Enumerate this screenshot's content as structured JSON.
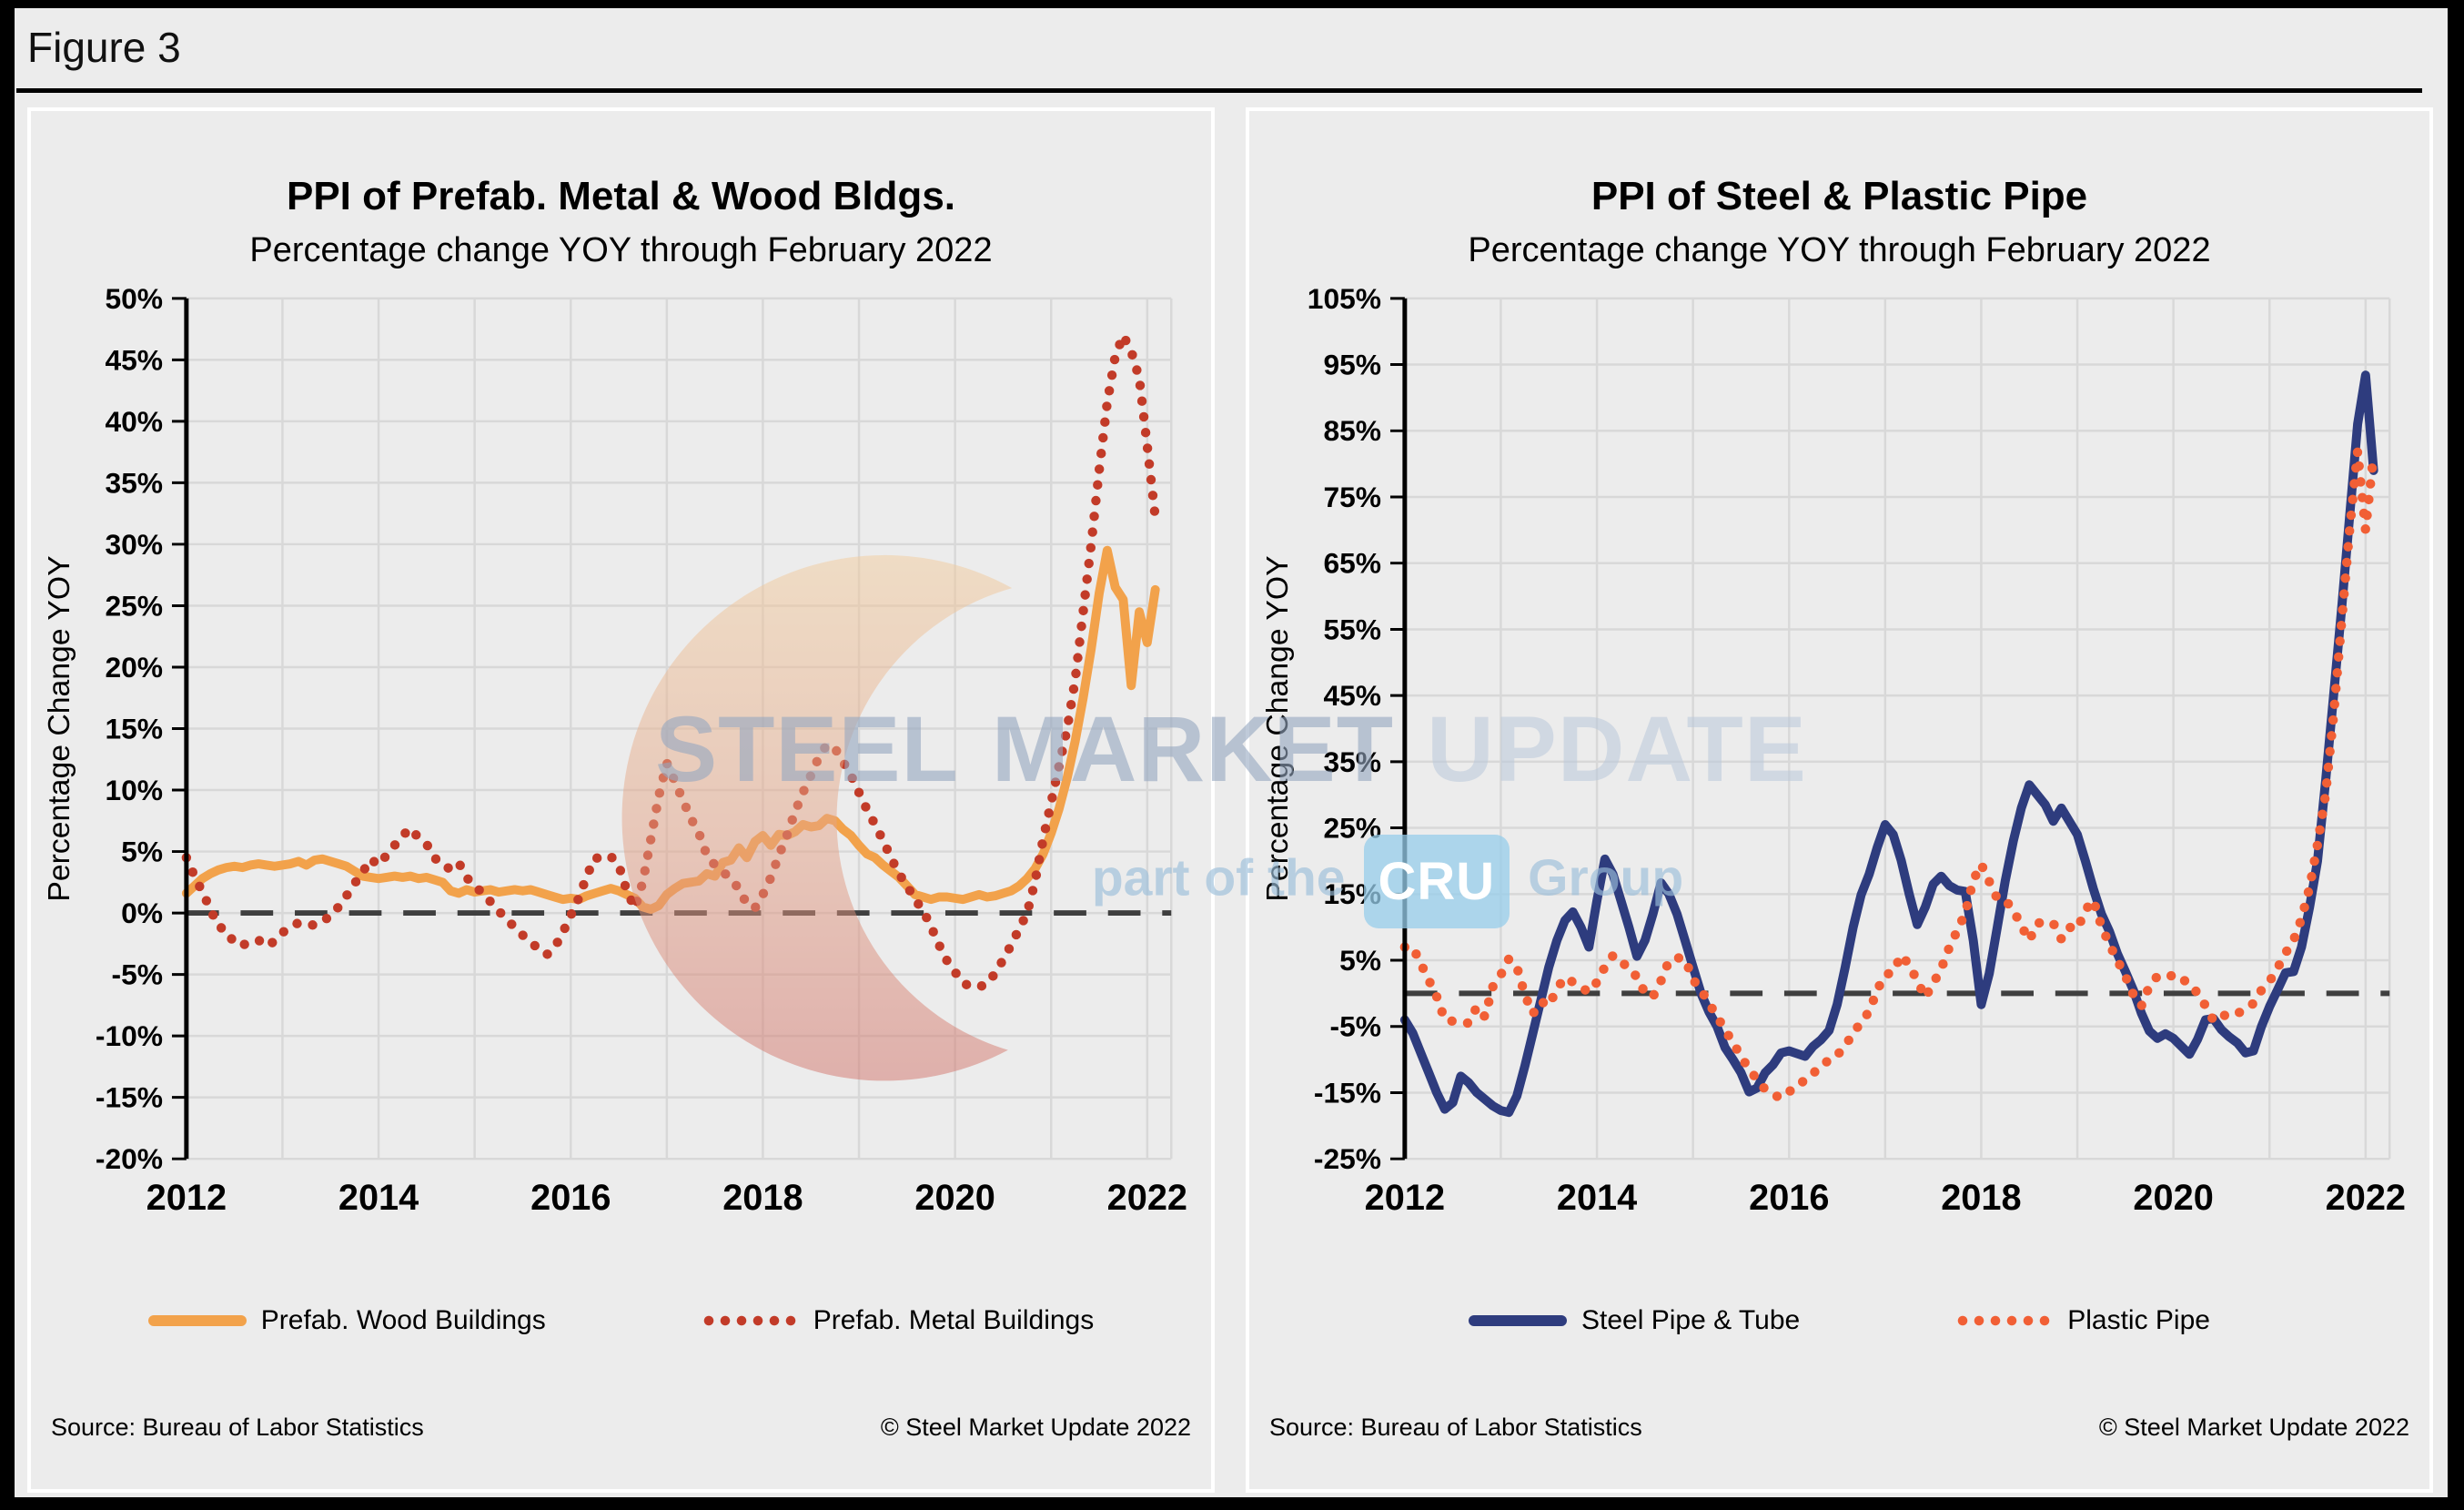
{
  "figure_label": "Figure 3",
  "watermark": {
    "word1": "STEEL",
    "word2": "MARKET",
    "word3": "UPDATE",
    "tagline_prefix": "part of the",
    "tagline_box": "CRU",
    "tagline_suffix": "Group"
  },
  "colors": {
    "wood": "#F2A24B",
    "metal": "#C23B28",
    "steel": "#2E3C7E",
    "plastic": "#F15F35",
    "zero_line": "#3F3F3F",
    "grid": "#D8D8D8",
    "axis": "#000000",
    "panel_bg": "#ECECEC",
    "page_border": "#000000",
    "watermark_blue": "#94A6C0",
    "watermark_light": "#B9C8DB",
    "cru_box": "#97CDEB"
  },
  "charts": [
    {
      "title": "PPI of Prefab. Metal & Wood Bldgs.",
      "subtitle": "Percentage change YOY through February 2022",
      "y_title": "Percentage Change YOY",
      "source": "Source: Bureau of Labor Statistics",
      "copyright": "© Steel Market Update 2022",
      "legend": [
        {
          "label": "Prefab. Wood Buildings",
          "series": "wood",
          "style": "solid"
        },
        {
          "label": "Prefab. Metal Buildings",
          "series": "metal",
          "style": "dotted"
        }
      ]
    },
    {
      "title": "PPI of Steel & Plastic Pipe",
      "subtitle": "Percentage change YOY through February 2022",
      "y_title": "Percentage Change YOY",
      "source": "Source: Bureau of Labor Statistics",
      "copyright": "© Steel Market Update 2022",
      "legend": [
        {
          "label": "Steel Pipe & Tube",
          "series": "steel",
          "style": "solid"
        },
        {
          "label": "Plastic Pipe",
          "series": "plastic",
          "style": "dotted"
        }
      ]
    }
  ],
  "chart_data": [
    {
      "type": "line",
      "title": "PPI of Prefab. Metal & Wood Bldgs.",
      "subtitle": "Percentage change YOY through February 2022",
      "x_start": "2012-01",
      "x_end": "2022-02",
      "freq": "monthly",
      "x_tick_labels": [
        "2012",
        "2014",
        "2016",
        "2018",
        "2020",
        "2022"
      ],
      "ylabel": "Percentage Change YOY",
      "ylim": [
        -20,
        50
      ],
      "ytick_step": 5,
      "ytick_format": "percent",
      "grid": true,
      "zero_line": "dashed",
      "legend_position": "bottom",
      "series": [
        {
          "name": "Prefab. Wood Buildings",
          "style": "solid",
          "color": "#F2A24B",
          "values": [
            1.6,
            2.2,
            2.8,
            3.2,
            3.5,
            3.7,
            3.8,
            3.7,
            3.9,
            4.0,
            3.9,
            3.8,
            3.9,
            4.0,
            4.2,
            3.9,
            4.3,
            4.4,
            4.2,
            4.0,
            3.8,
            3.4,
            3.0,
            2.9,
            2.8,
            2.9,
            3.0,
            2.9,
            3.0,
            2.8,
            2.9,
            2.7,
            2.5,
            1.8,
            1.6,
            1.9,
            1.7,
            1.8,
            1.9,
            1.7,
            1.8,
            1.9,
            1.8,
            1.9,
            1.7,
            1.5,
            1.3,
            1.1,
            1.2,
            1.1,
            1.4,
            1.6,
            1.8,
            2.0,
            1.8,
            1.5,
            1.2,
            0.5,
            0.3,
            0.6,
            1.5,
            2.0,
            2.4,
            2.5,
            2.6,
            3.2,
            3.0,
            4.1,
            4.3,
            5.3,
            4.5,
            5.8,
            6.3,
            5.5,
            6.4,
            6.3,
            6.6,
            7.2,
            7.0,
            7.1,
            7.7,
            7.5,
            6.8,
            6.3,
            5.5,
            4.8,
            4.5,
            3.9,
            3.4,
            2.9,
            2.2,
            1.5,
            1.3,
            1.1,
            1.3,
            1.3,
            1.2,
            1.1,
            1.3,
            1.5,
            1.3,
            1.4,
            1.6,
            1.8,
            2.2,
            2.8,
            3.6,
            4.8,
            6.5,
            8.5,
            11.0,
            14.0,
            17.5,
            21.5,
            26.0,
            29.5,
            26.5,
            25.5,
            18.5,
            24.5,
            22.0,
            26.3
          ]
        },
        {
          "name": "Prefab. Metal Buildings",
          "style": "dotted",
          "color": "#C23B28",
          "values": [
            4.5,
            3.0,
            1.7,
            0.3,
            -1.1,
            -1.4,
            -2.5,
            -2.6,
            -2.4,
            -2.2,
            -2.7,
            -2.3,
            -1.6,
            -1.1,
            -0.8,
            -0.9,
            -1.0,
            -0.6,
            -0.3,
            0.5,
            1.4,
            2.4,
            3.3,
            4.4,
            3.9,
            4.7,
            5.5,
            6.3,
            6.9,
            6.1,
            5.6,
            4.5,
            3.8,
            3.6,
            4.1,
            2.9,
            2.1,
            1.7,
            0.9,
            0.2,
            -0.6,
            -1.1,
            -1.8,
            -2.4,
            -2.9,
            -3.4,
            -2.8,
            -1.6,
            -0.2,
            1.2,
            3.0,
            4.5,
            4.4,
            4.6,
            3.9,
            1.8,
            0.4,
            2.5,
            6.0,
            9.5,
            12.2,
            10.7,
            9.2,
            7.7,
            6.5,
            4.7,
            3.9,
            3.4,
            2.7,
            2.0,
            0.7,
            0.4,
            1.5,
            2.9,
            4.7,
            6.3,
            8.2,
            9.8,
            11.2,
            12.7,
            13.7,
            13.4,
            12.3,
            11.2,
            9.8,
            8.4,
            7.2,
            5.9,
            4.5,
            3.2,
            2.2,
            1.1,
            0.2,
            -1.1,
            -2.6,
            -3.9,
            -4.8,
            -5.7,
            -6.0,
            -6.0,
            -5.8,
            -4.9,
            -3.8,
            -2.6,
            -1.3,
            0.0,
            2.6,
            6.0,
            9.0,
            12.0,
            15.0,
            19.0,
            24.5,
            30.0,
            36.0,
            41.5,
            45.3,
            47.0,
            45.7,
            43.5,
            38.0,
            32.2
          ]
        }
      ]
    },
    {
      "type": "line",
      "title": "PPI of Steel & Plastic Pipe",
      "subtitle": "Percentage change YOY through February 2022",
      "x_start": "2012-01",
      "x_end": "2022-02",
      "freq": "monthly",
      "x_tick_labels": [
        "2012",
        "2014",
        "2016",
        "2018",
        "2020",
        "2022"
      ],
      "ylabel": "Percentage Change YOY",
      "ylim": [
        -25,
        105
      ],
      "ytick_step": 10,
      "ytick_format": "percent",
      "grid": true,
      "zero_line": "dashed",
      "legend_position": "bottom",
      "series": [
        {
          "name": "Steel Pipe & Tube",
          "style": "solid",
          "color": "#2E3C7E",
          "values": [
            -4.0,
            -6.0,
            -9.0,
            -12.0,
            -15.0,
            -17.5,
            -16.5,
            -12.5,
            -13.5,
            -15.0,
            -16.0,
            -17.0,
            -17.7,
            -18.0,
            -15.5,
            -11.0,
            -6.0,
            -1.0,
            4.0,
            8.0,
            11.0,
            12.3,
            10.0,
            7.0,
            14.0,
            20.3,
            18.0,
            14.0,
            10.0,
            5.6,
            8.0,
            12.0,
            16.7,
            15.0,
            12.0,
            8.0,
            4.0,
            0.0,
            -2.8,
            -5.0,
            -8.2,
            -10.0,
            -12.0,
            -14.9,
            -14.3,
            -12.0,
            -10.8,
            -9.0,
            -8.7,
            -9.1,
            -9.5,
            -8.0,
            -7.0,
            -5.6,
            -1.7,
            3.9,
            10.0,
            14.9,
            18.0,
            22.0,
            25.5,
            24.0,
            20.1,
            15.0,
            10.4,
            13.0,
            16.5,
            17.7,
            16.3,
            15.6,
            15.4,
            8.0,
            -1.7,
            3.0,
            10.0,
            17.0,
            23.0,
            28.0,
            31.5,
            30.0,
            28.5,
            26.0,
            28.0,
            26.0,
            24.0,
            20.0,
            15.8,
            12.0,
            9.4,
            6.0,
            3.3,
            0.5,
            -3.0,
            -5.7,
            -6.8,
            -6.1,
            -6.8,
            -8.0,
            -9.2,
            -7.0,
            -4.0,
            -3.8,
            -5.5,
            -6.6,
            -7.5,
            -9.0,
            -8.7,
            -5.0,
            -2.0,
            0.5,
            3.1,
            3.3,
            7.0,
            13.0,
            20.0,
            32.0,
            45.0,
            58.0,
            72.0,
            86.0,
            93.4,
            79.0
          ]
        },
        {
          "name": "Plastic Pipe",
          "style": "dotted",
          "color": "#F15F35",
          "values": [
            7.0,
            7.0,
            4.5,
            2.0,
            -0.5,
            -4.0,
            -4.2,
            -4.3,
            -4.5,
            -2.0,
            -3.5,
            1.0,
            2.8,
            5.2,
            4.0,
            -0.2,
            -3.1,
            -1.2,
            -1.9,
            0.7,
            2.4,
            1.7,
            0.9,
            0.2,
            1.7,
            4.0,
            5.7,
            5.2,
            3.3,
            2.6,
            0.0,
            -0.5,
            1.9,
            4.9,
            5.4,
            5.2,
            2.1,
            0.5,
            -1.5,
            -3.5,
            -5.5,
            -7.5,
            -9.5,
            -11.5,
            -13.0,
            -14.5,
            -15.3,
            -15.8,
            -14.9,
            -13.7,
            -13.2,
            -12.0,
            -11.3,
            -9.9,
            -9.4,
            -7.8,
            -6.2,
            -4.2,
            -2.8,
            0.5,
            2.8,
            3.2,
            5.8,
            4.3,
            1.9,
            -0.6,
            1.5,
            3.7,
            6.9,
            9.5,
            12.1,
            17.1,
            19.5,
            16.9,
            14.3,
            14.1,
            12.6,
            10.2,
            8.0,
            10.6,
            10.8,
            10.6,
            8.2,
            10.0,
            9.7,
            12.6,
            14.1,
            10.2,
            7.4,
            5.0,
            2.6,
            -0.2,
            -1.9,
            1.1,
            2.6,
            2.8,
            2.6,
            2.6,
            0.9,
            0.2,
            -1.9,
            -4.1,
            -3.2,
            -3.5,
            -3.0,
            -2.5,
            -1.5,
            0.5,
            1.8,
            3.8,
            6.1,
            8.0,
            11.3,
            16.0,
            22.5,
            30.0,
            42.0,
            56.0,
            70.0,
            81.9,
            70.0,
            81.5
          ]
        }
      ]
    }
  ]
}
